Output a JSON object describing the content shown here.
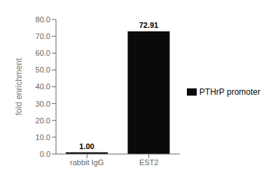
{
  "chart_data": {
    "type": "bar",
    "categories": [
      "rabbit IgG",
      "EST2"
    ],
    "series": [
      {
        "name": "PTHrP promoter",
        "color": "#0a0a0a",
        "values": [
          1.0,
          72.91
        ],
        "value_labels": [
          "1.00",
          "72.91"
        ]
      }
    ],
    "ylabel": "fold enrichment",
    "ylim": [
      0,
      80
    ],
    "yticks": [
      {
        "value": 0,
        "label": "0.0"
      },
      {
        "value": 10,
        "label": "10.0"
      },
      {
        "value": 20,
        "label": "20.0"
      },
      {
        "value": 30,
        "label": "30.0"
      },
      {
        "value": 40,
        "label": "40.0"
      },
      {
        "value": 50,
        "label": "50.0"
      },
      {
        "value": 60,
        "label": "60.0"
      },
      {
        "value": 70,
        "label": "70.0"
      },
      {
        "value": 80,
        "label": "80.0"
      }
    ],
    "data_labels": true,
    "legend": "right",
    "grid": false
  }
}
